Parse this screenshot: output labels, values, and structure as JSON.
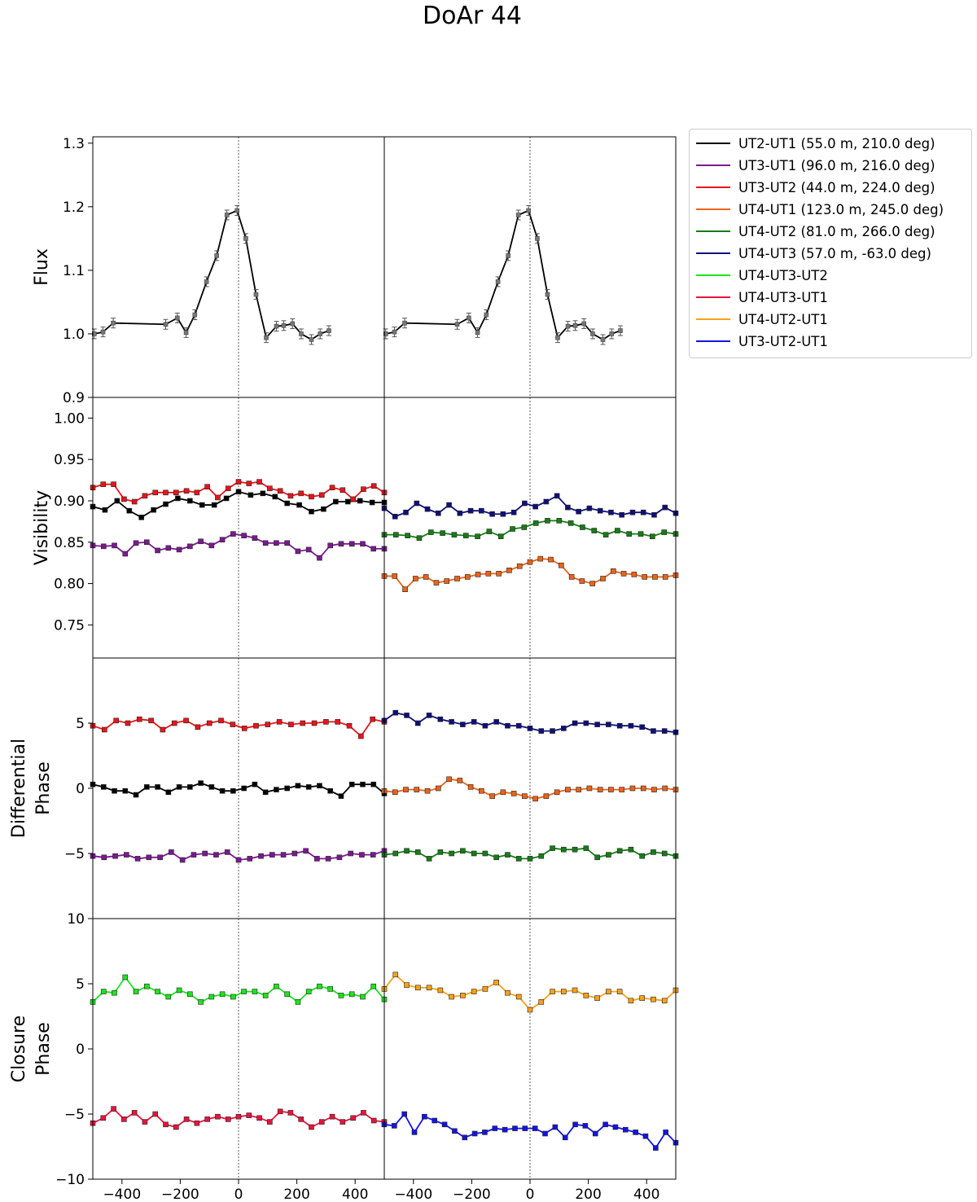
{
  "chart_data": {
    "type": "line",
    "title": "DoAr 44",
    "xlim": [
      -500,
      500
    ],
    "x_ticks": [
      -400,
      -200,
      0,
      200,
      400
    ],
    "x_tick_labels": [
      "−400",
      "−200",
      "0",
      "200",
      "400"
    ],
    "x": [
      -495,
      -465,
      -430,
      -250,
      -210,
      -180,
      -150,
      -110,
      -75,
      -40,
      -5,
      25,
      60,
      95,
      130,
      155,
      185,
      215,
      250,
      280,
      310,
      460,
      495
    ],
    "legend": [
      {
        "label": "UT2-UT1 (55.0 m, 210.0 deg)",
        "color": "#000000"
      },
      {
        "label": "UT3-UT1 (96.0 m, 216.0 deg)",
        "color": "#7a1a8f"
      },
      {
        "label": "UT3-UT2 (44.0 m, 224.0 deg)",
        "color": "#e8151b"
      },
      {
        "label": "UT4-UT1 (123.0 m, 245.0 deg)",
        "color": "#e8641b"
      },
      {
        "label": "UT4-UT2 (81.0 m, 266.0 deg)",
        "color": "#187c18"
      },
      {
        "label": "UT4-UT3 (57.0 m, -63.0 deg)",
        "color": "#0f0f7a"
      },
      {
        "label": "UT4-UT3-UT2",
        "color": "#1be41b"
      },
      {
        "label": "UT4-UT3-UT1",
        "color": "#e8143c"
      },
      {
        "label": "UT4-UT2-UT1",
        "color": "#f5a11b"
      },
      {
        "label": "UT3-UT2-UT1",
        "color": "#1414e0"
      }
    ],
    "panels": [
      {
        "ylabel": [
          "Flux"
        ],
        "ylim": [
          0.9,
          1.31
        ],
        "yticks": [
          0.9,
          1.0,
          1.1,
          1.2,
          1.3
        ],
        "ytick_labels": [
          "0.9",
          "1.0",
          "1.1",
          "1.2",
          "1.3"
        ],
        "left": [
          {
            "name": "Flux",
            "color": "#000000",
            "marker": "errorbar",
            "y": [
              1.0,
              1.003,
              1.017,
              1.015,
              1.025,
              1.002,
              1.03,
              1.082,
              1.123,
              1.187,
              1.194,
              1.15,
              1.062,
              0.994,
              1.012,
              1.013,
              1.016,
              1.0,
              0.991,
              1.0,
              1.005
            ]
          }
        ],
        "right": [
          {
            "name": "Flux",
            "color": "#000000",
            "marker": "errorbar",
            "y": [
              1.0,
              1.003,
              1.017,
              1.015,
              1.025,
              1.002,
              1.03,
              1.082,
              1.123,
              1.187,
              1.194,
              1.15,
              1.062,
              0.994,
              1.012,
              1.013,
              1.016,
              1.0,
              0.991,
              1.0,
              1.005
            ]
          }
        ]
      },
      {
        "ylabel": [
          "Visibility"
        ],
        "ylim": [
          0.71,
          1.025
        ],
        "yticks": [
          0.75,
          0.8,
          0.85,
          0.9,
          0.95,
          1.0
        ],
        "ytick_labels": [
          "0.75",
          "0.80",
          "0.85",
          "0.90",
          "0.95",
          "1.00"
        ],
        "left": [
          {
            "name": "UT2-UT1",
            "color": "#000000",
            "y": [
              0.893,
              0.889,
              0.9,
              0.888,
              0.88,
              0.889,
              0.896,
              0.903,
              0.9,
              0.895,
              0.895,
              0.903,
              0.911,
              0.907,
              0.909,
              0.905,
              0.897,
              0.895,
              0.887,
              0.89,
              0.899,
              0.899,
              0.9,
              0.898,
              0.898
            ]
          },
          {
            "name": "UT3-UT1",
            "color": "#7a1a8f",
            "y": [
              0.846,
              0.845,
              0.846,
              0.836,
              0.849,
              0.85,
              0.84,
              0.843,
              0.841,
              0.845,
              0.851,
              0.846,
              0.853,
              0.86,
              0.858,
              0.855,
              0.849,
              0.849,
              0.849,
              0.839,
              0.841,
              0.831,
              0.846,
              0.848,
              0.848,
              0.848,
              0.842,
              0.842
            ]
          },
          {
            "name": "UT3-UT2",
            "color": "#e8151b",
            "y": [
              0.916,
              0.92,
              0.92,
              0.902,
              0.899,
              0.906,
              0.91,
              0.91,
              0.91,
              0.912,
              0.91,
              0.917,
              0.904,
              0.915,
              0.923,
              0.921,
              0.923,
              0.915,
              0.912,
              0.906,
              0.909,
              0.905,
              0.907,
              0.916,
              0.913,
              0.902,
              0.914,
              0.918,
              0.91
            ]
          }
        ],
        "right": [
          {
            "name": "UT4-UT3",
            "color": "#0f0f7a",
            "y": [
              0.891,
              0.881,
              0.886,
              0.897,
              0.89,
              0.885,
              0.895,
              0.885,
              0.888,
              0.888,
              0.884,
              0.884,
              0.886,
              0.897,
              0.893,
              0.899,
              0.906,
              0.892,
              0.887,
              0.891,
              0.888,
              0.886,
              0.883,
              0.886,
              0.886,
              0.883,
              0.892,
              0.885
            ]
          },
          {
            "name": "UT4-UT2",
            "color": "#187c18",
            "y": [
              0.859,
              0.859,
              0.858,
              0.855,
              0.862,
              0.861,
              0.859,
              0.858,
              0.857,
              0.863,
              0.857,
              0.866,
              0.868,
              0.873,
              0.876,
              0.876,
              0.873,
              0.868,
              0.864,
              0.859,
              0.864,
              0.86,
              0.86,
              0.857,
              0.862,
              0.86
            ]
          },
          {
            "name": "UT4-UT1",
            "color": "#e8641b",
            "y": [
              0.809,
              0.809,
              0.793,
              0.806,
              0.808,
              0.801,
              0.803,
              0.806,
              0.808,
              0.811,
              0.812,
              0.812,
              0.816,
              0.821,
              0.826,
              0.83,
              0.829,
              0.822,
              0.808,
              0.803,
              0.8,
              0.806,
              0.815,
              0.812,
              0.811,
              0.808,
              0.808,
              0.808,
              0.81
            ]
          }
        ]
      },
      {
        "ylabel": [
          "Differential",
          "Phase"
        ],
        "ylim": [
          -10,
          10
        ],
        "yticks": [
          -5,
          0,
          5
        ],
        "ytick_labels": [
          "−5",
          "0",
          "5"
        ],
        "left": [
          {
            "name": "UT3-UT2",
            "color": "#e8151b",
            "y": [
              4.8,
              4.5,
              5.2,
              5.0,
              5.3,
              5.2,
              4.5,
              5.0,
              5.2,
              4.7,
              5.0,
              5.2,
              4.9,
              4.6,
              4.8,
              4.9,
              5.1,
              4.9,
              5.0,
              5.0,
              5.1,
              5.1,
              4.8,
              4.0,
              5.3,
              5.1
            ]
          },
          {
            "name": "UT2-UT1",
            "color": "#000000",
            "y": [
              0.3,
              0.1,
              -0.2,
              -0.2,
              -0.5,
              0.1,
              0.1,
              -0.3,
              0.1,
              0.1,
              0.4,
              0.1,
              -0.2,
              -0.2,
              0.0,
              0.3,
              -0.3,
              -0.1,
              0.0,
              0.2,
              0.1,
              0.2,
              -0.2,
              -0.6,
              0.3,
              0.3,
              0.3,
              -0.4
            ]
          },
          {
            "name": "UT3-UT1",
            "color": "#7a1a8f",
            "y": [
              -5.2,
              -5.3,
              -5.2,
              -5.1,
              -5.4,
              -5.3,
              -5.3,
              -4.9,
              -5.5,
              -5.1,
              -5.0,
              -5.1,
              -4.9,
              -5.5,
              -5.4,
              -5.2,
              -5.1,
              -5.1,
              -5.0,
              -4.8,
              -5.4,
              -5.4,
              -5.3,
              -5.0,
              -5.1,
              -5.1,
              -4.8
            ]
          }
        ],
        "right": [
          {
            "name": "UT4-UT3",
            "color": "#0f0f7a",
            "y": [
              5.2,
              5.8,
              5.6,
              5.0,
              5.6,
              5.3,
              5.1,
              4.9,
              5.1,
              4.8,
              5.1,
              4.8,
              4.8,
              4.6,
              4.4,
              4.4,
              4.6,
              5.0,
              5.0,
              4.9,
              4.9,
              4.8,
              4.8,
              4.7,
              4.4,
              4.4,
              4.3
            ]
          },
          {
            "name": "UT4-UT1",
            "color": "#e8641b",
            "y": [
              -0.2,
              -0.3,
              -0.1,
              -0.1,
              -0.2,
              0.0,
              0.7,
              0.6,
              0.1,
              -0.2,
              -0.6,
              -0.3,
              -0.4,
              -0.6,
              -0.8,
              -0.6,
              -0.3,
              -0.1,
              -0.1,
              0.0,
              -0.1,
              -0.1,
              -0.1,
              0.0,
              0.0,
              -0.1,
              0.0,
              -0.1
            ]
          },
          {
            "name": "UT4-UT2",
            "color": "#187c18",
            "y": [
              -5.1,
              -5.0,
              -4.8,
              -4.9,
              -5.4,
              -4.9,
              -5.0,
              -4.8,
              -5.0,
              -5.0,
              -5.3,
              -5.1,
              -5.4,
              -5.4,
              -5.2,
              -4.6,
              -4.7,
              -4.7,
              -4.6,
              -5.3,
              -5.1,
              -4.8,
              -4.7,
              -5.2,
              -4.9,
              -5.0,
              -5.2
            ]
          }
        ]
      },
      {
        "ylabel": [
          "Closure",
          "Phase"
        ],
        "ylim": [
          -10,
          10
        ],
        "yticks": [
          -10,
          -5,
          0,
          5,
          10
        ],
        "ytick_labels": [
          "−10",
          "−5",
          "0",
          "5",
          "10"
        ],
        "left": [
          {
            "name": "UT4-UT3-UT2",
            "color": "#1be41b",
            "y": [
              3.6,
              4.4,
              4.3,
              5.5,
              4.4,
              4.8,
              4.4,
              4.0,
              4.5,
              4.2,
              3.6,
              4.0,
              4.2,
              4.0,
              4.4,
              4.4,
              4.1,
              4.8,
              4.2,
              3.6,
              4.4,
              4.8,
              4.6,
              4.1,
              4.2,
              4.0,
              4.8,
              3.8
            ]
          },
          {
            "name": "UT4-UT3-UT1",
            "color": "#e8143c",
            "y": [
              -5.7,
              -5.3,
              -4.6,
              -5.4,
              -4.9,
              -5.6,
              -5.0,
              -5.8,
              -6.0,
              -5.4,
              -5.7,
              -5.4,
              -5.2,
              -5.4,
              -5.2,
              -5.1,
              -5.3,
              -5.6,
              -4.8,
              -4.9,
              -5.4,
              -6.0,
              -5.6,
              -5.2,
              -5.6,
              -5.3,
              -4.9,
              -5.5,
              -5.6
            ]
          }
        ],
        "right": [
          {
            "name": "UT4-UT2-UT1",
            "color": "#f5a11b",
            "y": [
              4.6,
              5.7,
              4.9,
              4.7,
              4.7,
              4.5,
              4.0,
              4.1,
              4.4,
              4.6,
              5.1,
              4.3,
              4.0,
              3.0,
              3.6,
              4.4,
              4.4,
              4.5,
              4.1,
              3.9,
              4.4,
              4.4,
              3.7,
              3.9,
              3.8,
              3.7,
              4.5
            ]
          },
          {
            "name": "UT3-UT2-UT1",
            "color": "#1414e0",
            "y": [
              -5.8,
              -5.9,
              -5.0,
              -6.4,
              -5.2,
              -5.5,
              -5.8,
              -6.3,
              -6.8,
              -6.5,
              -6.4,
              -6.1,
              -6.2,
              -6.1,
              -6.1,
              -6.1,
              -6.5,
              -6.0,
              -6.8,
              -5.8,
              -5.9,
              -6.5,
              -5.8,
              -6.0,
              -6.2,
              -6.4,
              -6.7,
              -7.6,
              -6.4,
              -7.2
            ]
          }
        ]
      }
    ]
  }
}
